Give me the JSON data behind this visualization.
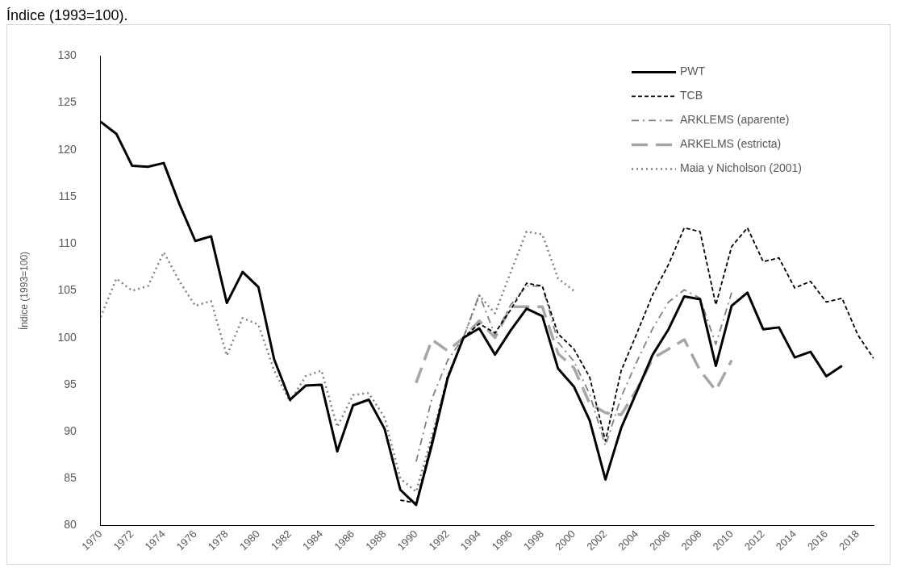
{
  "chart_data": {
    "type": "line",
    "title": "Índice (1993=100).",
    "ylabel": "Índice (1993=100)",
    "x": [
      1970,
      1971,
      1972,
      1973,
      1974,
      1975,
      1976,
      1977,
      1978,
      1979,
      1980,
      1981,
      1982,
      1983,
      1984,
      1985,
      1986,
      1987,
      1988,
      1989,
      1990,
      1991,
      1992,
      1993,
      1994,
      1995,
      1996,
      1997,
      1998,
      1999,
      2000,
      2001,
      2002,
      2003,
      2004,
      2005,
      2006,
      2007,
      2008,
      2009,
      2010,
      2011,
      2012,
      2013,
      2014,
      2015,
      2016,
      2017,
      2018,
      2019
    ],
    "xlim": [
      1970,
      2019
    ],
    "xticks": [
      1970,
      1972,
      1974,
      1976,
      1978,
      1980,
      1982,
      1984,
      1986,
      1988,
      1990,
      1992,
      1994,
      1996,
      1998,
      2000,
      2002,
      2004,
      2006,
      2008,
      2010,
      2012,
      2014,
      2016,
      2018
    ],
    "ylim": [
      80,
      130
    ],
    "yticks": [
      80,
      85,
      90,
      95,
      100,
      105,
      110,
      115,
      120,
      125,
      130
    ],
    "grid": false,
    "legend": "top right",
    "series": [
      {
        "name": "PWT",
        "color": "#000000",
        "line_style": "solid",
        "values": [
          123,
          121.7,
          118.3,
          118.2,
          118.6,
          114.2,
          110.3,
          110.8,
          103.7,
          107,
          105.4,
          97.7,
          93.4,
          94.9,
          95,
          87.9,
          92.8,
          93.4,
          90.3,
          83.8,
          82.2,
          88.6,
          95.7,
          100,
          101,
          98.2,
          100.8,
          103.1,
          102.3,
          96.7,
          94.8,
          91.2,
          84.9,
          90.4,
          94.3,
          98.2,
          100.9,
          104.4,
          104.1,
          97,
          103.4,
          104.8,
          100.9,
          101.1,
          97.9,
          98.5,
          95.9,
          97,
          null,
          null
        ]
      },
      {
        "name": "TCB",
        "color": "#000000",
        "line_style": "dashed",
        "values": [
          null,
          null,
          null,
          null,
          null,
          null,
          null,
          null,
          null,
          null,
          null,
          null,
          null,
          null,
          null,
          null,
          null,
          null,
          null,
          82.7,
          82.4,
          89,
          95.9,
          100,
          101.5,
          100.5,
          103,
          105.8,
          105.5,
          100.4,
          98.8,
          95.8,
          89,
          96.5,
          100.5,
          104.6,
          107.8,
          111.7,
          111.3,
          103.5,
          109.7,
          111.7,
          108.1,
          108.5,
          105.3,
          106,
          103.8,
          104.2,
          100.3,
          97.8
        ]
      },
      {
        "name": "ARKLEMS (aparente)",
        "color": "#808080",
        "line_style": "dashdot",
        "values": [
          null,
          null,
          null,
          null,
          null,
          null,
          null,
          null,
          null,
          null,
          null,
          null,
          null,
          null,
          null,
          null,
          null,
          null,
          null,
          null,
          86.8,
          93.5,
          97.6,
          100,
          104.6,
          100.3,
          103.5,
          105.5,
          105.5,
          99.5,
          97.5,
          94,
          88.5,
          93.7,
          97.5,
          101,
          103.8,
          105.1,
          104.2,
          99.3,
          104.8,
          null,
          null,
          null,
          null,
          null,
          null,
          null,
          null,
          null
        ]
      },
      {
        "name": "ARKELMS (estricta)",
        "color": "#a6a6a6",
        "line_style": "longdash",
        "values": [
          null,
          null,
          null,
          null,
          null,
          null,
          null,
          null,
          null,
          null,
          null,
          null,
          null,
          null,
          null,
          null,
          null,
          null,
          null,
          null,
          95.2,
          99.8,
          98.6,
          100,
          101.8,
          100,
          103.3,
          103.3,
          103.3,
          98.3,
          96.8,
          93,
          92,
          91.8,
          94.5,
          97.8,
          98.8,
          99.8,
          96.5,
          94.4,
          97.6,
          null,
          null,
          null,
          null,
          null,
          null,
          null,
          null,
          null
        ]
      },
      {
        "name": "Maia y Nicholson (2001)",
        "color": "#808080",
        "line_style": "dotted",
        "values": [
          102.2,
          106.3,
          105,
          105.5,
          109.1,
          106,
          103.4,
          103.9,
          98.1,
          102.1,
          101.4,
          96.5,
          93.2,
          95.9,
          96.5,
          90.5,
          93.9,
          94.1,
          91.5,
          85,
          83.6,
          89.5,
          95.8,
          100,
          104.5,
          102.6,
          107,
          111.3,
          111,
          106.3,
          105,
          null,
          null,
          null,
          null,
          null,
          null,
          null,
          null,
          null,
          null,
          null,
          null,
          null,
          null,
          null,
          null,
          null,
          null,
          null
        ]
      }
    ]
  }
}
